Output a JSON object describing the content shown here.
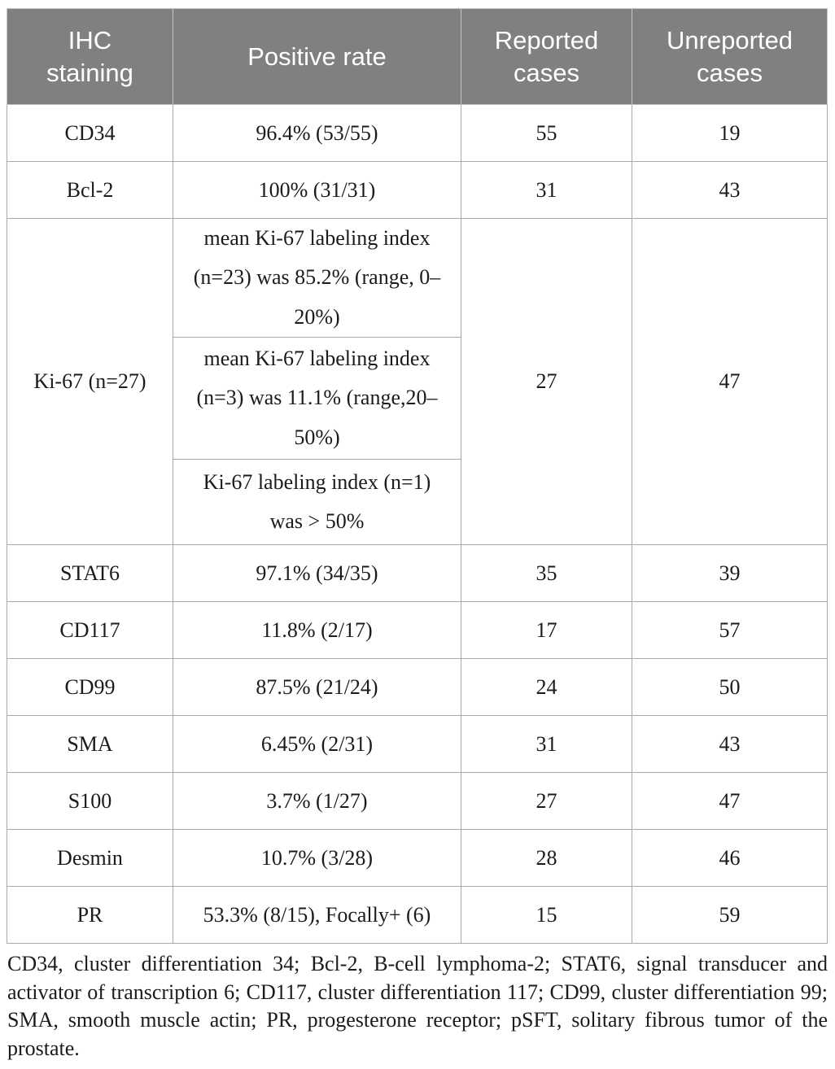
{
  "colors": {
    "header_bg": "#808080",
    "header_text": "#ffffff",
    "body_text": "#1b1b1b",
    "border": "#a9a9a9"
  },
  "table": {
    "headers": [
      "IHC staining",
      "Positive rate",
      "Reported cases",
      "Unreported cases"
    ],
    "rows": [
      {
        "staining": "CD34",
        "positive_rate": "96.4% (53/55)",
        "reported": "55",
        "unreported": "19"
      },
      {
        "staining": "Bcl-2",
        "positive_rate": "100% (31/31)",
        "reported": "31",
        "unreported": "43"
      },
      {
        "staining": "STAT6",
        "positive_rate": "97.1% (34/35)",
        "reported": "35",
        "unreported": "39"
      },
      {
        "staining": "CD117",
        "positive_rate": "11.8% (2/17)",
        "reported": "17",
        "unreported": "57"
      },
      {
        "staining": "CD99",
        "positive_rate": "87.5% (21/24)",
        "reported": "24",
        "unreported": "50"
      },
      {
        "staining": "SMA",
        "positive_rate": "6.45% (2/31)",
        "reported": "31",
        "unreported": "43"
      },
      {
        "staining": "S100",
        "positive_rate": "3.7% (1/27)",
        "reported": "27",
        "unreported": "47"
      },
      {
        "staining": "Desmin",
        "positive_rate": "10.7% (3/28)",
        "reported": "28",
        "unreported": "46"
      },
      {
        "staining": "PR",
        "positive_rate": "53.3% (8/15), Focally+ (6)",
        "reported": "15",
        "unreported": "59"
      }
    ],
    "ki67": {
      "staining": "Ki-67 (n=27)",
      "positive_rate_parts": [
        "mean Ki-67 labeling index (n=23) was 85.2% (range, 0–20%)",
        "mean Ki-67 labeling index (n=3) was 11.1% (range,20–50%)",
        "Ki-67 labeling index (n=1) was > 50%"
      ],
      "reported": "27",
      "unreported": "47"
    }
  },
  "footnote": "CD34, cluster differentiation 34; Bcl-2, B-cell lymphoma-2; STAT6, signal transducer and activator of transcription 6; CD117, cluster differentiation 117; CD99, cluster differentiation 99; SMA, smooth muscle actin; PR, progesterone receptor; pSFT, solitary fibrous tumor of the prostate."
}
